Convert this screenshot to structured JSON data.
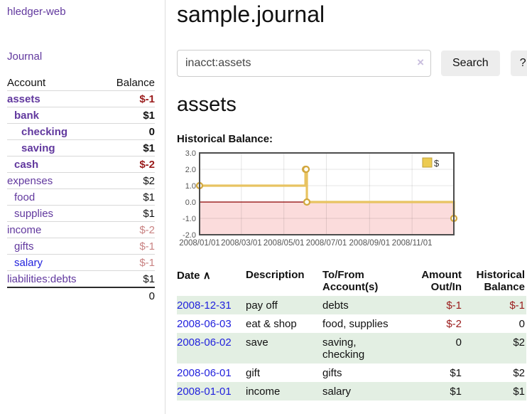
{
  "app": {
    "brand": "hledger-web",
    "nav": {
      "journal": "Journal"
    }
  },
  "sidebar": {
    "header": {
      "account": "Account",
      "balance": "Balance"
    },
    "accounts": [
      {
        "name": "assets",
        "indent": 0,
        "bold": true,
        "amount": "$-1",
        "amount_class": "neg"
      },
      {
        "name": "bank",
        "indent": 1,
        "bold": true,
        "amount": "$1",
        "amount_class": ""
      },
      {
        "name": "checking",
        "indent": 2,
        "bold": true,
        "amount": "0",
        "amount_class": ""
      },
      {
        "name": "saving",
        "indent": 2,
        "bold": true,
        "amount": "$1",
        "amount_class": ""
      },
      {
        "name": "cash",
        "indent": 1,
        "bold": true,
        "amount": "$-2",
        "amount_class": "neg"
      },
      {
        "name": "expenses",
        "indent": 0,
        "bold": false,
        "amount": "$2",
        "amount_class": ""
      },
      {
        "name": "food",
        "indent": 1,
        "bold": false,
        "amount": "$1",
        "amount_class": ""
      },
      {
        "name": "supplies",
        "indent": 1,
        "bold": false,
        "amount": "$1",
        "amount_class": ""
      },
      {
        "name": "income",
        "indent": 0,
        "bold": false,
        "amount": "$-2",
        "amount_class": "neg-soft"
      },
      {
        "name": "gifts",
        "indent": 1,
        "bold": false,
        "amount": "$-1",
        "amount_class": "neg-soft"
      },
      {
        "name": "salary",
        "indent": 1,
        "bold": false,
        "name_class": "blue",
        "amount": "$-1",
        "amount_class": "neg-soft"
      },
      {
        "name": "liabilities:debts",
        "indent": 0,
        "bold": false,
        "amount": "$1",
        "amount_class": ""
      }
    ],
    "total": "0"
  },
  "main": {
    "title": "sample.journal",
    "search": {
      "value": "inacct:assets",
      "clear_icon": "×",
      "search_button": "Search",
      "help_button": "?"
    },
    "account_heading": "assets",
    "chart_heading": "Historical Balance:",
    "register": {
      "headers": {
        "date": "Date",
        "sort_icon": "∧",
        "description": "Description",
        "accounts": "To/From Account(s)",
        "amount": "Amount Out/In",
        "balance": "Historical Balance"
      },
      "rows": [
        {
          "date": "2008-12-31",
          "description": "pay off",
          "accounts": "debts",
          "amount": "$-1",
          "amount_neg": true,
          "balance": "$-1",
          "balance_neg": true
        },
        {
          "date": "2008-06-03",
          "description": "eat & shop",
          "accounts": "food, supplies",
          "amount": "$-2",
          "amount_neg": true,
          "balance": "0",
          "balance_neg": false
        },
        {
          "date": "2008-06-02",
          "description": "save",
          "accounts": "saving, checking",
          "amount": "0",
          "amount_neg": false,
          "balance": "$2",
          "balance_neg": false
        },
        {
          "date": "2008-06-01",
          "description": "gift",
          "accounts": "gifts",
          "amount": "$1",
          "amount_neg": false,
          "balance": "$2",
          "balance_neg": false
        },
        {
          "date": "2008-01-01",
          "description": "income",
          "accounts": "salary",
          "amount": "$1",
          "amount_neg": false,
          "balance": "$1",
          "balance_neg": false
        }
      ]
    }
  },
  "chart_data": {
    "type": "line",
    "step": true,
    "title": "Historical Balance:",
    "x_range": [
      "2008-01-01",
      "2008-12-31"
    ],
    "ylim": [
      -2,
      3
    ],
    "yticks": [
      3.0,
      2.0,
      1.0,
      0.0,
      -1.0,
      -2.0
    ],
    "xtick_labels": [
      "2008/01/01",
      "2008/03/01",
      "2008/05/01",
      "2008/07/01",
      "2008/09/01",
      "2008/11/01"
    ],
    "xtick_dates": [
      "2008-01-01",
      "2008-03-01",
      "2008-05-01",
      "2008-07-01",
      "2008-09-01",
      "2008-11-01"
    ],
    "grid": true,
    "legend": {
      "label": "$",
      "position": "top-right"
    },
    "series": [
      {
        "name": "$",
        "color": "#e8c361",
        "points": [
          [
            "2008-01-01",
            1
          ],
          [
            "2008-06-01",
            2
          ],
          [
            "2008-06-02",
            2
          ],
          [
            "2008-06-03",
            0
          ],
          [
            "2008-12-31",
            -1
          ]
        ]
      }
    ],
    "negative_region_color": "#fbdcdc",
    "zero_line_color": "#8b0000"
  },
  "colors": {
    "link_purple": "#61389e",
    "link_blue": "#2222dd",
    "negative_strong": "#9a1b1b",
    "negative_soft": "#c98383",
    "row_stripe_green": "#e3efe3",
    "series_gold": "#e8c361",
    "marker_ring_gold": "#d2a73d",
    "legend_square_gold": "#eccb52",
    "negative_region_pink": "#fbdcdc",
    "zero_line_dark_red": "#8b0000",
    "chart_border_gray": "#4d4d4d"
  }
}
